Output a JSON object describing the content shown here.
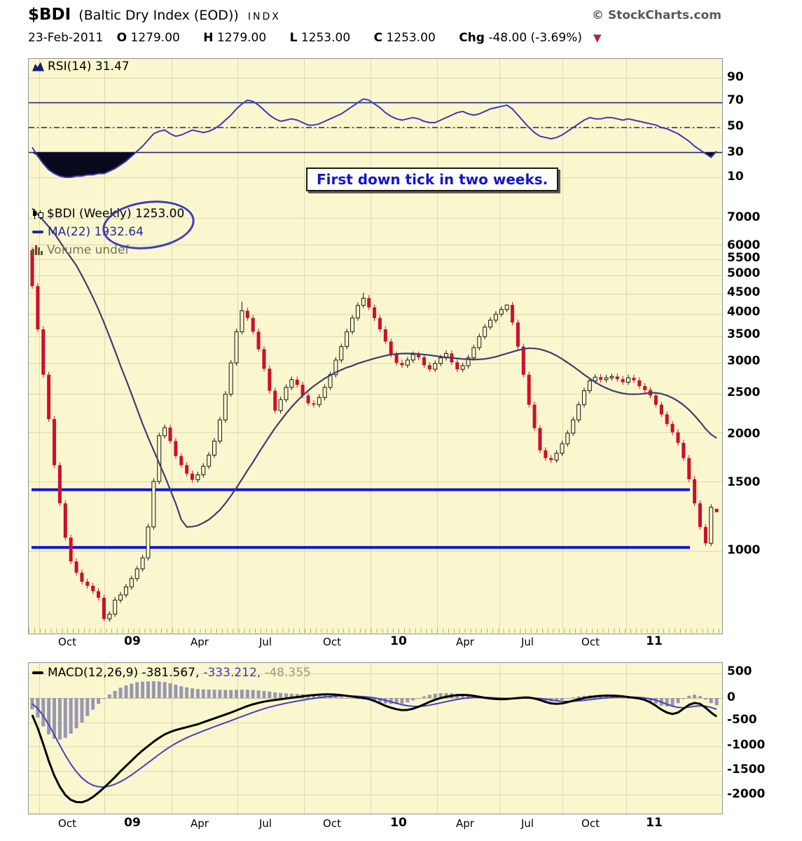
{
  "header": {
    "symbol": "$BDI",
    "name": "(Baltic Dry Index (EOD))",
    "exchange": "INDX",
    "date": "23-Feb-2011",
    "oL": "O",
    "oV": "1279.00",
    "hL": "H",
    "hV": "1279.00",
    "lL": "L",
    "lV": "1253.00",
    "cL": "C",
    "cV": "1253.00",
    "chgL": "Chg",
    "chgV": "-48.00 (-3.69%)",
    "down_arrow": "▼",
    "watermark": "© StockCharts.com"
  },
  "rsi_panel": {
    "legend": "RSI(14) 31.47",
    "yticks": [
      "90",
      "70",
      "50",
      "30",
      "10"
    ]
  },
  "annotation": {
    "text": "First down tick in two weeks."
  },
  "main_panel": {
    "legend_symbol": "$BDI (Weekly) 1253.00",
    "legend_ma": "MA(22) 1932.64",
    "legend_volume": "Volume undef",
    "yticks": [
      "7000",
      "6000",
      "5500",
      "5000",
      "4500",
      "4000",
      "3500",
      "3000",
      "2500",
      "2000",
      "1500",
      "1000"
    ]
  },
  "macd_panel": {
    "value_macd": "MACD(12,26,9) -381.567,",
    "value_signal": "-333.212,",
    "value_hist": "-48.355",
    "yticks": [
      "500",
      "0",
      "-500",
      "-1000",
      "-1500",
      "-2000"
    ]
  },
  "xticks": [
    "Oct",
    "09",
    "Apr",
    "Jul",
    "Oct",
    "10",
    "Apr",
    "Jul",
    "Oct",
    "11"
  ],
  "chart_data": {
    "type": "candlestick",
    "frequency": "weekly",
    "x_range": [
      "Oct-2008",
      "Feb-2011"
    ],
    "price_log_scale": true,
    "title": "$BDI Baltic Dry Index (EOD) Weekly",
    "last_quote": {
      "open": 1279.0,
      "high": 1279.0,
      "low": 1253.0,
      "close": 1253.0,
      "chg": -48.0,
      "chg_pct": -3.69
    },
    "rsi_last": 31.47,
    "ma22_last": 1932.64,
    "macd_last": -381.567,
    "signal_last": -333.212,
    "hist_last": -48.355,
    "support_levels": [
      1430,
      1020
    ],
    "price_ticks": [
      7000,
      6000,
      5500,
      5000,
      4500,
      4000,
      3500,
      3000,
      2500,
      2000,
      1500,
      1000
    ],
    "rsi_ticks": [
      90,
      70,
      50,
      30,
      10
    ],
    "macd_ticks": [
      500,
      0,
      -500,
      -1000,
      -1500,
      -2000
    ],
    "first_open": 5800,
    "closes": [
      4700,
      3650,
      2800,
      2160,
      1650,
      1320,
      1080,
      940,
      880,
      835,
      815,
      790,
      760,
      672,
      691,
      750,
      773,
      810,
      850,
      900,
      960,
      1150,
      1500,
      1960,
      2055,
      1900,
      1740,
      1650,
      1570,
      1515,
      1560,
      1640,
      1750,
      1900,
      2150,
      2500,
      3000,
      3600,
      4070,
      3900,
      3600,
      3250,
      2900,
      2550,
      2270,
      2420,
      2600,
      2720,
      2640,
      2480,
      2370,
      2350,
      2450,
      2600,
      2800,
      3050,
      3300,
      3600,
      3900,
      4200,
      4380,
      4150,
      3900,
      3650,
      3400,
      3150,
      3000,
      2960,
      3050,
      3150,
      3100,
      2960,
      2890,
      2990,
      3090,
      3170,
      3010,
      2890,
      2950,
      3090,
      3280,
      3500,
      3700,
      3850,
      3990,
      4100,
      4209,
      3800,
      3300,
      2800,
      2350,
      2050,
      1800,
      1720,
      1700,
      1770,
      1870,
      1990,
      2150,
      2350,
      2550,
      2700,
      2760,
      2720,
      2750,
      2770,
      2730,
      2680,
      2750,
      2710,
      2620,
      2560,
      2480,
      2350,
      2220,
      2100,
      2000,
      1880,
      1720,
      1520,
      1320,
      1150,
      1045,
      1290,
      1253
    ],
    "last_candle_ohlc": [
      1279,
      1279,
      1253,
      1253
    ],
    "ma22": [
      7400,
      7150,
      6900,
      6650,
      6400,
      6100,
      5800,
      5550,
      5300,
      5000,
      4700,
      4400,
      4100,
      3800,
      3500,
      3220,
      2950,
      2720,
      2500,
      2290,
      2100,
      1940,
      1800,
      1670,
      1550,
      1430,
      1320,
      1200,
      1150,
      1152,
      1160,
      1178,
      1200,
      1232,
      1270,
      1320,
      1380,
      1445,
      1520,
      1600,
      1680,
      1770,
      1860,
      1955,
      2050,
      2140,
      2230,
      2320,
      2400,
      2480,
      2550,
      2620,
      2680,
      2740,
      2790,
      2840,
      2880,
      2920,
      2950,
      2990,
      3020,
      3050,
      3080,
      3105,
      3130,
      3150,
      3160,
      3168,
      3170,
      3168,
      3160,
      3150,
      3140,
      3125,
      3110,
      3100,
      3090,
      3080,
      3070,
      3065,
      3060,
      3063,
      3070,
      3088,
      3110,
      3140,
      3170,
      3200,
      3230,
      3255,
      3270,
      3265,
      3250,
      3220,
      3180,
      3130,
      3070,
      3005,
      2940,
      2870,
      2800,
      2740,
      2680,
      2630,
      2590,
      2555,
      2530,
      2510,
      2500,
      2498,
      2500,
      2508,
      2520,
      2518,
      2505,
      2480,
      2445,
      2400,
      2345,
      2280,
      2205,
      2125,
      2040,
      1975,
      1933
    ],
    "rsi14": [
      34,
      27,
      21,
      16,
      13,
      11,
      10,
      10,
      11,
      11,
      12,
      12,
      13,
      13,
      15,
      17,
      20,
      23,
      27,
      31,
      35,
      40,
      45,
      47,
      48,
      45,
      43,
      44,
      46,
      48,
      47,
      46,
      47,
      49,
      52,
      56,
      60,
      65,
      69,
      72,
      71,
      68,
      64,
      60,
      57,
      55,
      56,
      57,
      56,
      54,
      52,
      52,
      53,
      55,
      57,
      59,
      61,
      64,
      67,
      70,
      73,
      72,
      69,
      66,
      62,
      59,
      57,
      56,
      57,
      58,
      57,
      55,
      54,
      54,
      56,
      58,
      60,
      62,
      63,
      61,
      60,
      61,
      63,
      65,
      66,
      67,
      68,
      65,
      60,
      55,
      50,
      46,
      43,
      42,
      41,
      42,
      44,
      47,
      50,
      53,
      56,
      58,
      57,
      57,
      58,
      58,
      57,
      56,
      57,
      56,
      55,
      54,
      53,
      52,
      50,
      49,
      47,
      45,
      42,
      39,
      35,
      32,
      29,
      26,
      31
    ],
    "macd": [
      -350,
      -620,
      -950,
      -1300,
      -1600,
      -1830,
      -2000,
      -2100,
      -2145,
      -2150,
      -2110,
      -2040,
      -1950,
      -1850,
      -1740,
      -1630,
      -1510,
      -1400,
      -1290,
      -1180,
      -1080,
      -990,
      -900,
      -820,
      -750,
      -700,
      -660,
      -630,
      -600,
      -570,
      -540,
      -500,
      -460,
      -420,
      -380,
      -340,
      -300,
      -255,
      -210,
      -165,
      -130,
      -100,
      -75,
      -55,
      -40,
      -25,
      -10,
      5,
      20,
      35,
      50,
      62,
      70,
      75,
      75,
      70,
      60,
      45,
      30,
      15,
      0,
      -20,
      -60,
      -110,
      -160,
      -200,
      -230,
      -250,
      -245,
      -220,
      -180,
      -130,
      -80,
      -35,
      0,
      25,
      45,
      60,
      65,
      60,
      45,
      25,
      5,
      -10,
      -20,
      -25,
      -20,
      -10,
      0,
      10,
      10,
      -10,
      -40,
      -80,
      -110,
      -120,
      -110,
      -85,
      -55,
      -25,
      0,
      20,
      35,
      45,
      50,
      50,
      45,
      35,
      20,
      5,
      -10,
      -40,
      -90,
      -160,
      -240,
      -300,
      -330,
      -300,
      -220,
      -140,
      -100,
      -120,
      -200,
      -300,
      -381.6
    ]
  }
}
